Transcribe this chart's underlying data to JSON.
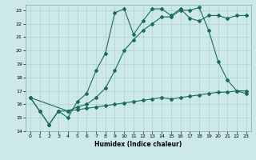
{
  "title": "",
  "xlabel": "Humidex (Indice chaleur)",
  "bg_color": "#cce8e8",
  "line_color": "#1a6b5a",
  "grid_color": "#b0d0d0",
  "xlim": [
    -0.5,
    23.5
  ],
  "ylim": [
    14,
    23.4
  ],
  "yticks": [
    14,
    15,
    16,
    17,
    18,
    19,
    20,
    21,
    22,
    23
  ],
  "xticks": [
    0,
    1,
    2,
    3,
    4,
    5,
    6,
    7,
    8,
    9,
    10,
    11,
    12,
    13,
    14,
    15,
    16,
    17,
    18,
    19,
    20,
    21,
    22,
    23
  ],
  "line1_x": [
    0,
    1,
    2,
    3,
    4,
    5,
    6,
    7,
    8,
    9,
    10,
    11,
    12,
    13,
    14,
    15,
    16,
    17,
    18,
    19,
    20,
    21,
    22,
    23
  ],
  "line1_y": [
    16.5,
    15.5,
    14.5,
    15.5,
    15.0,
    16.2,
    16.8,
    18.5,
    19.8,
    22.8,
    23.1,
    21.2,
    22.2,
    23.1,
    23.1,
    22.6,
    23.1,
    22.4,
    22.2,
    22.6,
    22.6,
    22.4,
    22.6,
    22.6
  ],
  "line2_x": [
    0,
    4,
    5,
    6,
    7,
    8,
    9,
    10,
    11,
    12,
    13,
    14,
    15,
    16,
    17,
    18,
    19,
    20,
    21,
    22,
    23
  ],
  "line2_y": [
    16.5,
    15.5,
    15.8,
    16.0,
    16.5,
    17.2,
    18.5,
    20.0,
    20.8,
    21.5,
    22.0,
    22.5,
    22.5,
    23.0,
    23.0,
    23.2,
    21.5,
    19.2,
    17.8,
    17.0,
    16.8
  ],
  "line3_x": [
    0,
    1,
    2,
    3,
    4,
    5,
    6,
    7,
    8,
    9,
    10,
    11,
    12,
    13,
    14,
    15,
    16,
    17,
    18,
    19,
    20,
    21,
    22,
    23
  ],
  "line3_y": [
    16.5,
    15.5,
    14.5,
    15.5,
    15.5,
    15.6,
    15.7,
    15.8,
    15.9,
    16.0,
    16.1,
    16.2,
    16.3,
    16.4,
    16.5,
    16.4,
    16.5,
    16.6,
    16.7,
    16.8,
    16.9,
    16.9,
    17.0,
    17.0
  ]
}
